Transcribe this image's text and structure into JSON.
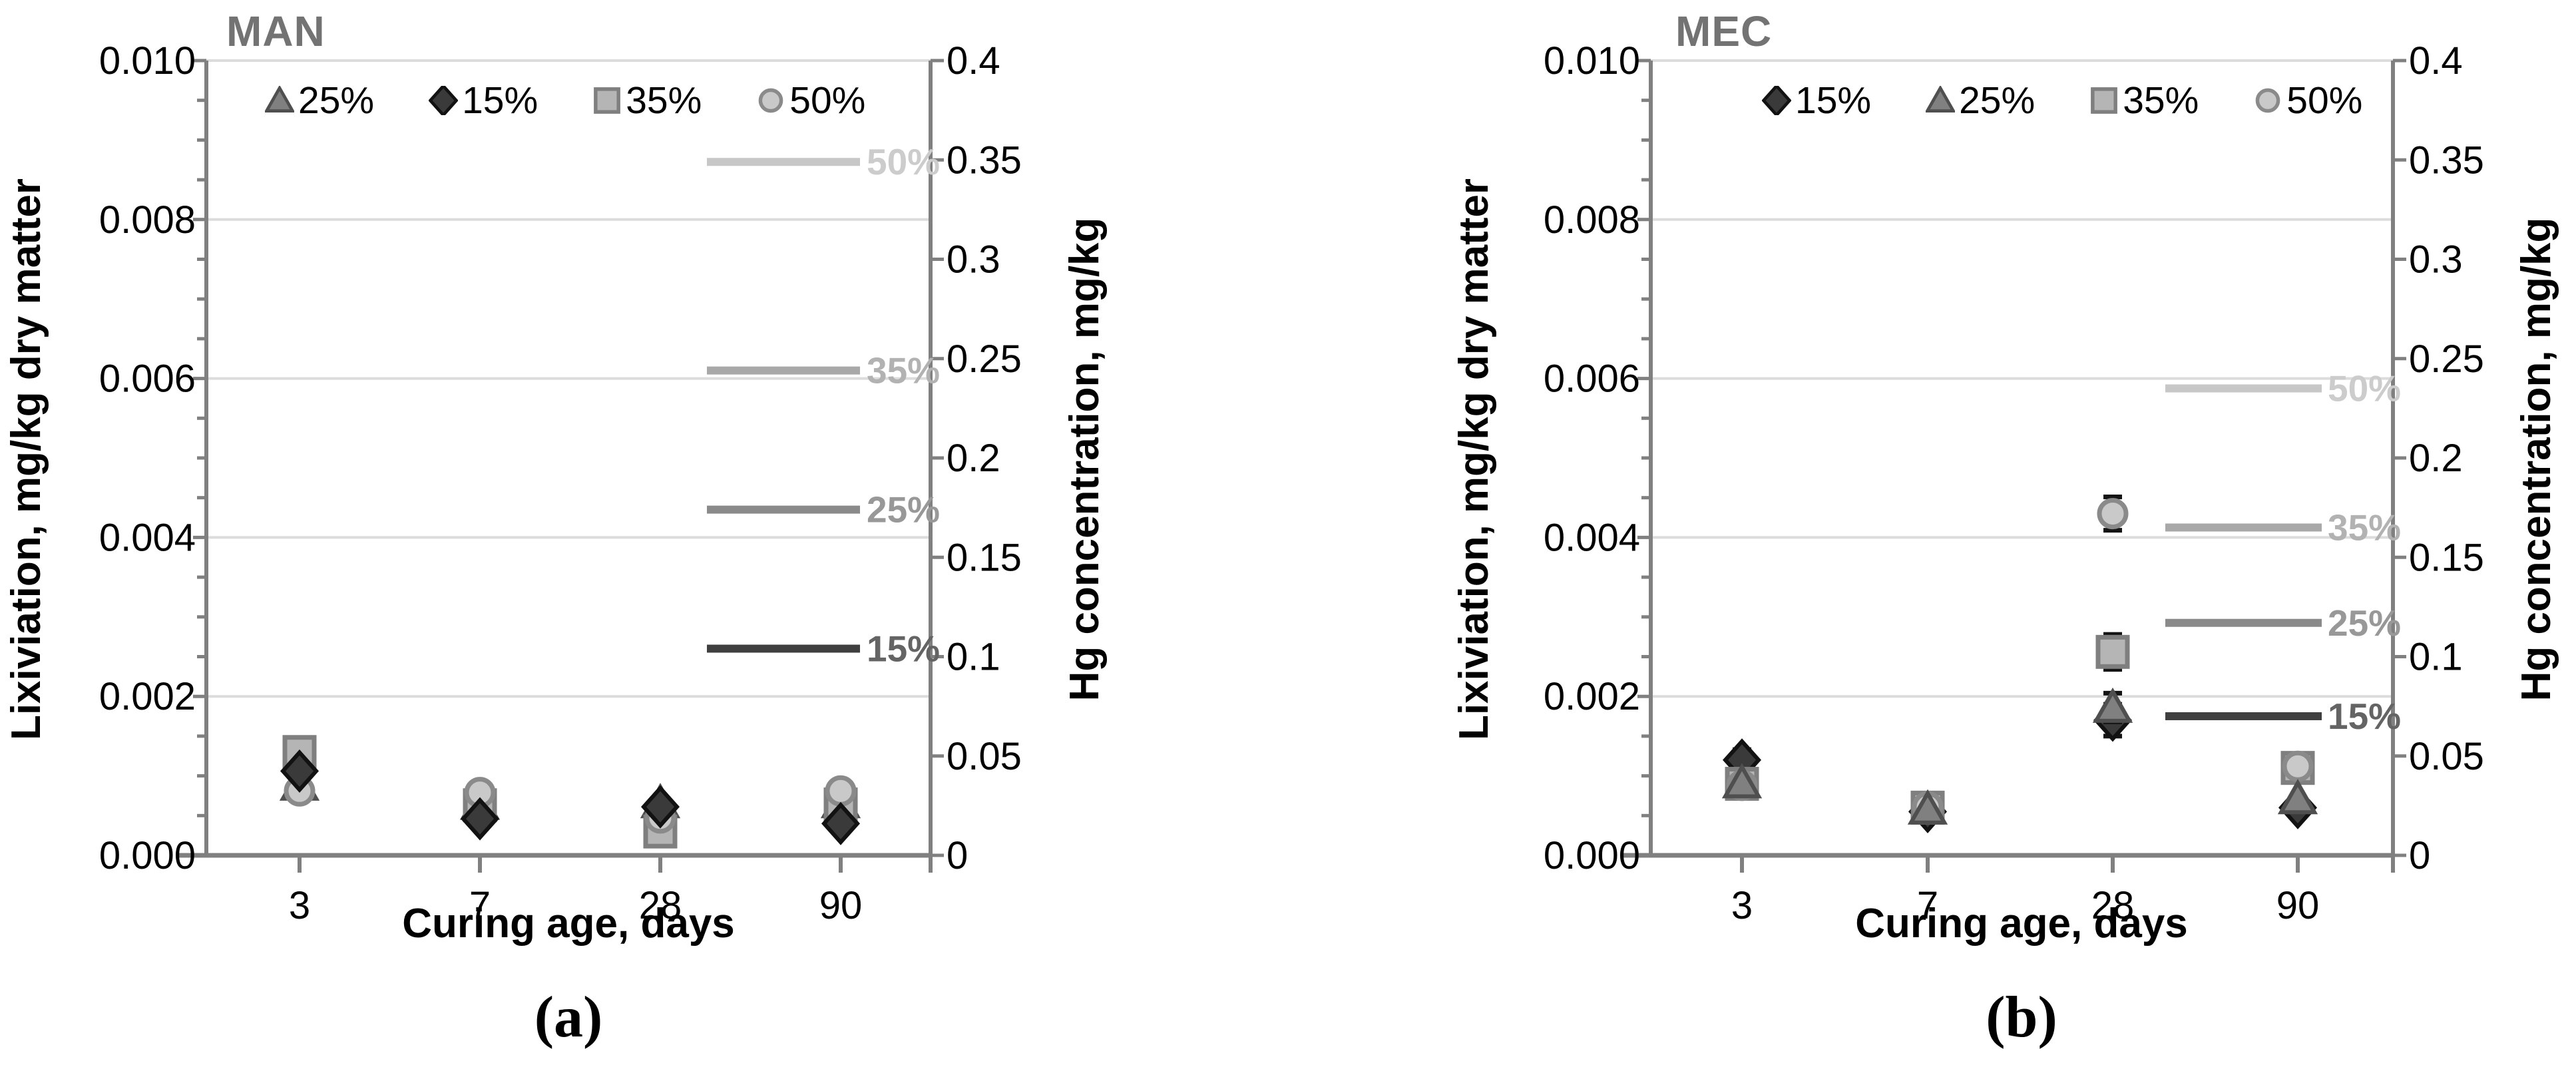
{
  "charts": [
    {
      "id": "a",
      "title": "MAN",
      "caption": "(a)",
      "xlabel": "Curing age, days",
      "ylabel_left": "Lixiviation, mg/kg dry matter",
      "ylabel_right": "Hg concentration, mg/kg",
      "type": "scatter",
      "x_categories": [
        "3",
        "7",
        "28",
        "90"
      ],
      "ylim_left": [
        0,
        0.01
      ],
      "ylim_right": [
        0,
        0.4
      ],
      "yticks_left": [
        "0.000",
        "0.002",
        "0.004",
        "0.006",
        "0.008",
        "0.010"
      ],
      "yticks_right": [
        "0",
        "0.05",
        "0.1",
        "0.15",
        "0.2",
        "0.25",
        "0.3",
        "0.35",
        "0.4"
      ],
      "legend": [
        {
          "label": "25%",
          "marker": "triangle",
          "fill": "#808080",
          "stroke": "#4f4f4f"
        },
        {
          "label": "15%",
          "marker": "diamond",
          "fill": "#3a3a3a",
          "stroke": "#121212"
        },
        {
          "label": "35%",
          "marker": "square",
          "fill": "#b5b5b5",
          "stroke": "#7f7f7f"
        },
        {
          "label": "50%",
          "marker": "circle",
          "fill": "#c9c9c9",
          "stroke": "#8a8a8a"
        }
      ],
      "series": [
        {
          "name": "25%",
          "marker": "triangle",
          "fill": "#808080",
          "stroke": "#4f4f4f",
          "values": [
            0.00088,
            0.00064,
            0.00066,
            0.00066
          ],
          "errors": [
            0,
            0,
            0,
            0
          ]
        },
        {
          "name": "35%",
          "marker": "square",
          "fill": "#b5b5b5",
          "stroke": "#7f7f7f",
          "values": [
            0.0013,
            0.00063,
            0.0003,
            0.00064
          ],
          "errors": [
            0,
            0,
            0,
            0
          ]
        },
        {
          "name": "50%",
          "marker": "circle",
          "fill": "#c9c9c9",
          "stroke": "#8a8a8a",
          "values": [
            0.00081,
            0.00079,
            0.00047,
            0.00081
          ],
          "errors": [
            0,
            0,
            0,
            0
          ]
        },
        {
          "name": "15%",
          "marker": "diamond",
          "fill": "#3a3a3a",
          "stroke": "#121212",
          "values": [
            0.00106,
            0.00046,
            0.00061,
            0.0004
          ],
          "errors": [
            0,
            0,
            0,
            0
          ]
        }
      ],
      "ref_lines": [
        {
          "label": "50%",
          "value_right": 0.349,
          "color": "#c7c7c7",
          "label_color": "#cccccc"
        },
        {
          "label": "35%",
          "value_right": 0.244,
          "color": "#a8a8a8",
          "label_color": "#b2b2b2"
        },
        {
          "label": "25%",
          "value_right": 0.174,
          "color": "#8a8a8a",
          "label_color": "#989898"
        },
        {
          "label": "15%",
          "value_right": 0.104,
          "color": "#3f3f3f",
          "label_color": "#646464"
        }
      ]
    },
    {
      "id": "b",
      "title": "MEC",
      "caption": "(b)",
      "xlabel": "Curing age, days",
      "ylabel_left": "Lixiviation, mg/kg dry matter",
      "ylabel_right": "Hg concentration, mg/kg",
      "type": "scatter",
      "x_categories": [
        "3",
        "7",
        "28",
        "90"
      ],
      "ylim_left": [
        0,
        0.01
      ],
      "ylim_right": [
        0,
        0.4
      ],
      "yticks_left": [
        "0.000",
        "0.002",
        "0.004",
        "0.006",
        "0.008",
        "0.010"
      ],
      "yticks_right": [
        "0",
        "0.05",
        "0.1",
        "0.15",
        "0.2",
        "0.25",
        "0.3",
        "0.35",
        "0.4"
      ],
      "legend": [
        {
          "label": "15%",
          "marker": "diamond",
          "fill": "#3a3a3a",
          "stroke": "#121212"
        },
        {
          "label": "25%",
          "marker": "triangle",
          "fill": "#808080",
          "stroke": "#4f4f4f"
        },
        {
          "label": "35%",
          "marker": "square",
          "fill": "#b5b5b5",
          "stroke": "#7f7f7f"
        },
        {
          "label": "50%",
          "marker": "circle",
          "fill": "#c9c9c9",
          "stroke": "#8a8a8a"
        }
      ],
      "series": [
        {
          "name": "15%",
          "marker": "diamond",
          "fill": "#3a3a3a",
          "stroke": "#121212",
          "values": [
            0.0012,
            0.00055,
            0.0017,
            0.0006
          ],
          "errors": [
            0.00013,
            0,
            0.0002,
            0
          ]
        },
        {
          "name": "35%",
          "marker": "square",
          "fill": "#b5b5b5",
          "stroke": "#7f7f7f",
          "values": [
            0.0009,
            0.0006,
            0.00256,
            0.0011
          ],
          "errors": [
            0,
            0,
            0.00022,
            8e-05
          ]
        },
        {
          "name": "50%",
          "marker": "circle",
          "fill": "#c9c9c9",
          "stroke": "#8a8a8a",
          "values": [
            0.00088,
            0.00061,
            0.0043,
            0.00112
          ],
          "errors": [
            0,
            0,
            0.00021,
            0
          ]
        },
        {
          "name": "25%",
          "marker": "triangle",
          "fill": "#808080",
          "stroke": "#4f4f4f",
          "values": [
            0.00091,
            0.00058,
            0.00186,
            0.00071
          ],
          "errors": [
            0,
            0,
            0.00018,
            0
          ]
        }
      ],
      "ref_lines": [
        {
          "label": "50%",
          "value_right": 0.235,
          "color": "#c7c7c7",
          "label_color": "#cccccc"
        },
        {
          "label": "35%",
          "value_right": 0.165,
          "color": "#a8a8a8",
          "label_color": "#b2b2b2"
        },
        {
          "label": "25%",
          "value_right": 0.117,
          "color": "#8a8a8a",
          "label_color": "#989898"
        },
        {
          "label": "15%",
          "value_right": 0.07,
          "color": "#3f3f3f",
          "label_color": "#646464"
        }
      ]
    }
  ],
  "chart_data": {
    "note": "Two-panel scatter figure; left axis Lixiviation (mg/kg dry matter) 0-0.010, right axis Hg concentration (mg/kg) 0-0.4, x = curing age in days.",
    "panels": [
      "MAN",
      "MEC"
    ],
    "x": [
      3,
      7,
      28,
      90
    ],
    "MAN": {
      "series": [
        {
          "name": "15%",
          "values": [
            0.00106,
            0.00046,
            0.00061,
            0.0004
          ]
        },
        {
          "name": "25%",
          "values": [
            0.00088,
            0.00064,
            0.00066,
            0.00066
          ]
        },
        {
          "name": "35%",
          "values": [
            0.0013,
            0.00063,
            0.0003,
            0.00064
          ]
        },
        {
          "name": "50%",
          "values": [
            0.00081,
            0.00079,
            0.00047,
            0.00081
          ]
        }
      ],
      "hg_concentration_lines": {
        "15%": 0.104,
        "25%": 0.174,
        "35%": 0.244,
        "50%": 0.349
      }
    },
    "MEC": {
      "series": [
        {
          "name": "15%",
          "values": [
            0.0012,
            0.00055,
            0.0017,
            0.0006
          ]
        },
        {
          "name": "25%",
          "values": [
            0.00091,
            0.00058,
            0.00186,
            0.00071
          ]
        },
        {
          "name": "35%",
          "values": [
            0.0009,
            0.0006,
            0.00256,
            0.0011
          ]
        },
        {
          "name": "50%",
          "values": [
            0.00088,
            0.00061,
            0.0043,
            0.00112
          ]
        }
      ],
      "hg_concentration_lines": {
        "15%": 0.07,
        "25%": 0.117,
        "35%": 0.165,
        "50%": 0.235
      }
    }
  }
}
